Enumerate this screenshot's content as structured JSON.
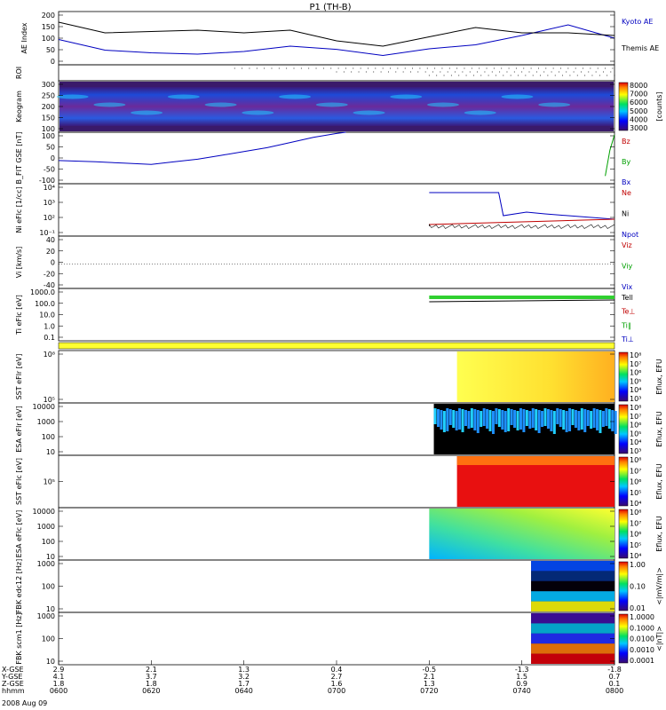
{
  "chart_data": {
    "type": "line",
    "title": "P1 (TH-B)",
    "date_label": "2008 Aug 09",
    "panels": [
      {
        "id": "ae",
        "ylabel": "AE Index",
        "yticks": [
          "200",
          "150",
          "100",
          "50",
          "0"
        ],
        "ylim": [
          0,
          200
        ],
        "series": [
          {
            "name": "Kyoto AE",
            "color": "#0000c0",
            "x": [
              0,
              10,
              20,
              30,
              40,
              50,
              60,
              70,
              80,
              90,
              100,
              110,
              120
            ],
            "y": [
              95,
              55,
              45,
              40,
              50,
              70,
              58,
              35,
              60,
              75,
              110,
              150,
              100
            ]
          },
          {
            "name": "Themis AE",
            "color": "#000000",
            "x": [
              0,
              10,
              20,
              30,
              40,
              50,
              60,
              70,
              80,
              90,
              100,
              110,
              120
            ],
            "y": [
              160,
              120,
              125,
              130,
              120,
              130,
              90,
              70,
              105,
              140,
              120,
              120,
              110
            ]
          }
        ]
      },
      {
        "id": "roi",
        "ylabel": "ROI",
        "yticks": []
      },
      {
        "id": "keogram",
        "ylabel": "Keogram",
        "yticks": [
          "300",
          "250",
          "200",
          "150",
          "100"
        ],
        "colorbar": {
          "ticks": [
            "8000",
            "7000",
            "6000",
            "5000",
            "4000",
            "3000"
          ],
          "label": "[counts]"
        }
      },
      {
        "id": "bfit",
        "ylabel": "B_FIT GSE [nT]",
        "yticks": [
          "100",
          "50",
          "0",
          "-50",
          "-100"
        ],
        "ylim": [
          -100,
          100
        ],
        "legend": [
          {
            "name": "Bz",
            "color": "#c00000"
          },
          {
            "name": "By",
            "color": "#00a000"
          },
          {
            "name": "Bx",
            "color": "#0000c0"
          }
        ],
        "series": [
          {
            "name": "Bx",
            "color": "#0000c0",
            "x": [
              0,
              8,
              14,
              20,
              25,
              30,
              35,
              40,
              45,
              50,
              55,
              60,
              62
            ],
            "y": [
              -10,
              -15,
              -20,
              -25,
              -15,
              -5,
              10,
              25,
              40,
              60,
              80,
              95,
              100
            ]
          },
          {
            "name": "By",
            "color": "#00a000",
            "x": [
              118,
              119,
              120
            ],
            "y": [
              -70,
              30,
              90
            ]
          }
        ]
      },
      {
        "id": "ni",
        "ylabel": "Ni eFlc [1/cc]",
        "yticks": [
          "10⁴",
          "10³",
          "10²",
          "10⁻¹"
        ],
        "legend": [
          {
            "name": "Ne",
            "color": "#c00000"
          },
          {
            "name": "Ni",
            "color": "#000000"
          },
          {
            "name": "Npot",
            "color": "#0000c0"
          }
        ]
      },
      {
        "id": "vi",
        "ylabel": "Vi [km/s]",
        "yticks": [
          "40",
          "20",
          "0",
          "-20",
          "-40"
        ],
        "ylim": [
          -50,
          50
        ],
        "legend": [
          {
            "name": "Viz",
            "color": "#c00000"
          },
          {
            "name": "Viy",
            "color": "#00a000"
          },
          {
            "name": "Vix",
            "color": "#0000c0"
          }
        ]
      },
      {
        "id": "ti",
        "ylabel": "Ti eFlc [eV]",
        "yticks": [
          "1000.0",
          "100.0",
          "10.0",
          "1.0",
          "0.1"
        ],
        "legend": [
          {
            "name": "Tell",
            "color": "#000000"
          },
          {
            "name": "Te⊥",
            "color": "#c00000"
          },
          {
            "name": "Ti∥",
            "color": "#00a000"
          },
          {
            "name": "Ti⊥",
            "color": "#0000c0"
          }
        ]
      },
      {
        "id": "sst1",
        "ylabel": "SST eFlr [eV]",
        "yticks": [
          "10⁸",
          "10⁵"
        ],
        "colorbar": {
          "ticks": [
            "10⁸",
            "10⁷",
            "10⁶",
            "10⁵",
            "10⁴",
            "10³"
          ],
          "label": "Eflux, EFU"
        }
      },
      {
        "id": "esa1",
        "ylabel": "ESA eFlr [eV]",
        "yticks": [
          "10000",
          "1000",
          "100",
          "10"
        ],
        "colorbar": {
          "ticks": [
            "10⁸",
            "10⁷",
            "10⁶",
            "10⁵",
            "10⁴",
            "10³"
          ],
          "label": "Eflux, EFU"
        }
      },
      {
        "id": "sst2",
        "ylabel": "SST eFlc [eV]",
        "yticks": [
          "10⁵"
        ],
        "colorbar": {
          "ticks": [
            "10⁸",
            "10⁷",
            "10⁶",
            "10⁵",
            "10⁴"
          ],
          "label": "Eflux, EFU"
        }
      },
      {
        "id": "esa2",
        "ylabel": "ESA eFlc [eV]",
        "yticks": [
          "10000",
          "1000",
          "100",
          "10"
        ],
        "colorbar": {
          "ticks": [
            "10⁸",
            "10⁷",
            "10⁶",
            "10⁵",
            "10⁴"
          ],
          "label": "Eflux, EFU"
        }
      },
      {
        "id": "fbk1",
        "ylabel": "FBK edc12 [Hz]",
        "yticks": [
          "1000",
          "100",
          "10"
        ],
        "colorbar": {
          "ticks": [
            "1.00",
            "0.10",
            "0.01"
          ],
          "label": "<|mV/m|>"
        }
      },
      {
        "id": "fbk2",
        "ylabel": "FBK scm1 [Hz]",
        "yticks": [
          "1000",
          "100",
          "10"
        ],
        "colorbar": {
          "ticks": [
            "1.0000",
            "0.1000",
            "0.0100",
            "0.0010",
            "0.0001"
          ],
          "label": "<|nT|>"
        }
      }
    ],
    "x_axis": {
      "row_labels": [
        "X-GSE",
        "Y-GSE",
        "Z-GSE",
        "hhmm"
      ],
      "ticks": [
        {
          "v": [
            "2.9",
            "4.1",
            "1.8",
            "0600"
          ]
        },
        {
          "v": [
            "2.1",
            "3.7",
            "1.8",
            "0620"
          ]
        },
        {
          "v": [
            "1.3",
            "3.2",
            "1.7",
            "0640"
          ]
        },
        {
          "v": [
            "0.4",
            "2.7",
            "1.6",
            "0700"
          ]
        },
        {
          "v": [
            "-0.5",
            "2.1",
            "1.3",
            "0720"
          ]
        },
        {
          "v": [
            "-1.3",
            "1.5",
            "0.9",
            "0740"
          ]
        },
        {
          "v": [
            "-1.8",
            "0.7",
            "0.1",
            "0800"
          ]
        }
      ]
    }
  }
}
